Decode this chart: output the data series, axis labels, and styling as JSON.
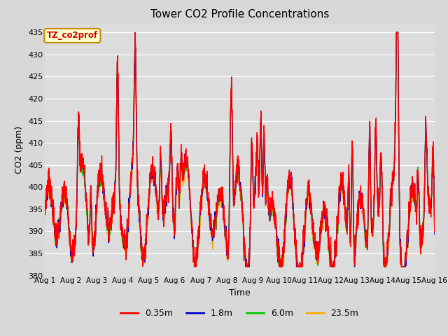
{
  "title": "Tower CO2 Profile Concentrations",
  "xlabel": "Time",
  "ylabel": "CO2 (ppm)",
  "ylim": [
    380,
    437
  ],
  "yticks": [
    380,
    385,
    390,
    395,
    400,
    405,
    410,
    415,
    420,
    425,
    430,
    435
  ],
  "fig_bg_color": "#d8d8d8",
  "plot_bg_color": "#dcdcdc",
  "legend_label": "TZ_co2prof",
  "legend_bg": "#ffffcc",
  "legend_border": "#cc8800",
  "series_labels": [
    "0.35m",
    "1.8m",
    "6.0m",
    "23.5m"
  ],
  "series_colors": [
    "#ff0000",
    "#0000cc",
    "#00cc00",
    "#ffaa00"
  ],
  "series_linewidths": [
    1.0,
    1.0,
    1.0,
    1.0
  ],
  "n_days": 15,
  "points_per_day": 144,
  "seed": 7
}
